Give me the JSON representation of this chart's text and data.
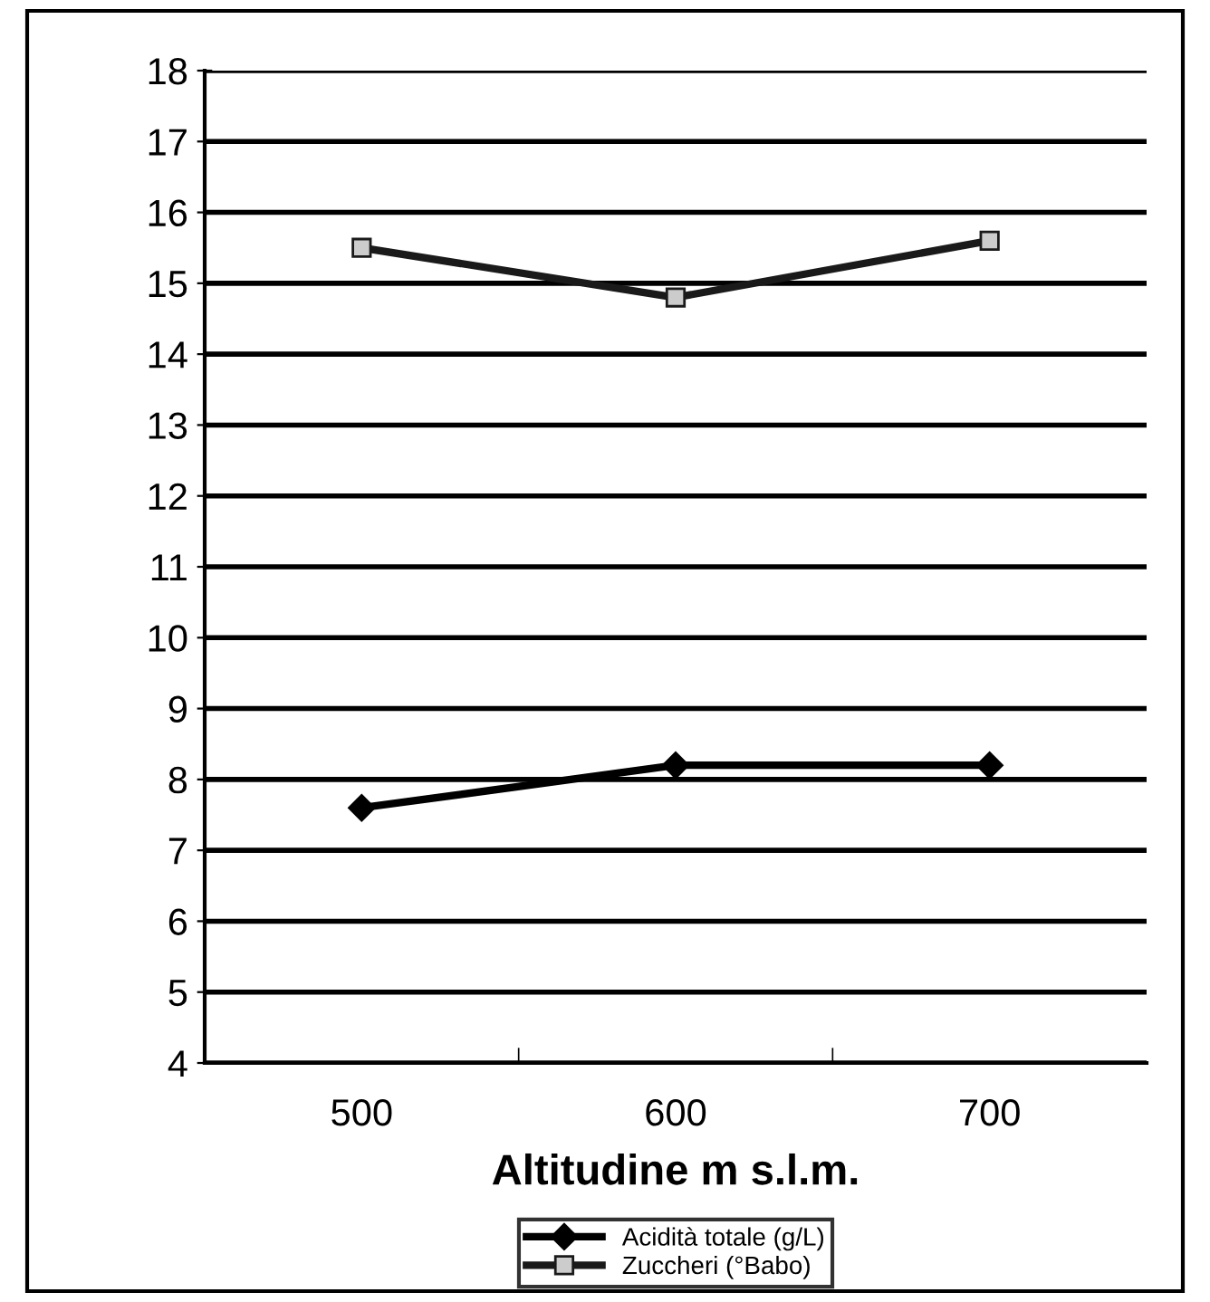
{
  "chart_data": {
    "type": "line",
    "xlabel": "Altitudine m s.l.m.",
    "categories": [
      "500",
      "600",
      "700"
    ],
    "series": [
      {
        "name": "Acidità totale (g/L)",
        "color": "#000000",
        "marker": "diamond",
        "values": [
          7.6,
          8.2,
          8.2
        ]
      },
      {
        "name": "Zuccheri (°Babo)",
        "color": "#1a1a1a",
        "marker": "square",
        "values": [
          15.5,
          14.8,
          15.6
        ]
      }
    ],
    "ylim": [
      4,
      18
    ],
    "yticks": [
      4,
      5,
      6,
      7,
      8,
      9,
      10,
      11,
      12,
      13,
      14,
      15,
      16,
      17,
      18
    ],
    "grid": "y",
    "legend": "bottom",
    "line_style": "solid"
  }
}
